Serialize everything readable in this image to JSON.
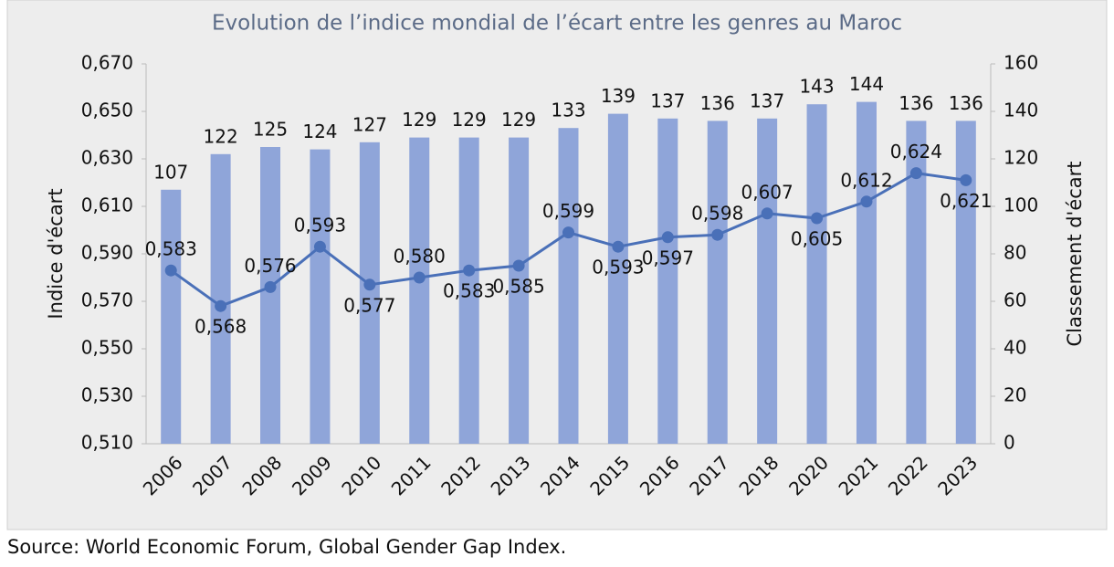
{
  "chart_data": {
    "type": "combo",
    "title": "Evolution de l’indice mondial de l’écart entre les genres au Maroc",
    "ylabel": "Indice d'écart",
    "y2label": "Classement d'écart",
    "source": "Source: World Economic Forum, Global Gender Gap Index.",
    "categories": [
      "2006",
      "2007",
      "2008",
      "2009",
      "2010",
      "2011",
      "2012",
      "2013",
      "2014",
      "2015",
      "2016",
      "2017",
      "2018",
      "2020",
      "2021",
      "2022",
      "2023"
    ],
    "series": [
      {
        "type": "bar",
        "axis": "y2",
        "color": "#8fa5d9",
        "values": [
          107,
          122,
          125,
          124,
          127,
          129,
          129,
          129,
          133,
          139,
          137,
          136,
          137,
          143,
          144,
          136,
          136
        ]
      },
      {
        "type": "line",
        "axis": "y",
        "color": "#4a70b8",
        "values": [
          0.583,
          0.568,
          0.576,
          0.593,
          0.577,
          0.58,
          0.583,
          0.585,
          0.599,
          0.593,
          0.597,
          0.598,
          0.607,
          0.605,
          0.612,
          0.624,
          0.621
        ],
        "value_labels": [
          "0,583",
          "0,568",
          "0,576",
          "0,593",
          "0,577",
          "0,580",
          "0,583",
          "0,585",
          "0,599",
          "0,593",
          "0,597",
          "0,598",
          "0,607",
          "0,605",
          "0,612",
          "0,624",
          "0,621"
        ]
      }
    ],
    "ylim": [
      0.51,
      0.67
    ],
    "yticks": [
      {
        "value": 0.51,
        "label": "0,510"
      },
      {
        "value": 0.53,
        "label": "0,530"
      },
      {
        "value": 0.55,
        "label": "0,550"
      },
      {
        "value": 0.57,
        "label": "0,570"
      },
      {
        "value": 0.59,
        "label": "0,590"
      },
      {
        "value": 0.61,
        "label": "0,610"
      },
      {
        "value": 0.63,
        "label": "0,630"
      },
      {
        "value": 0.65,
        "label": "0,650"
      },
      {
        "value": 0.67,
        "label": "0,670"
      }
    ],
    "y2lim": [
      0,
      160
    ],
    "y2ticks": [
      0,
      20,
      40,
      60,
      80,
      100,
      120,
      140,
      160
    ],
    "grid": false
  }
}
